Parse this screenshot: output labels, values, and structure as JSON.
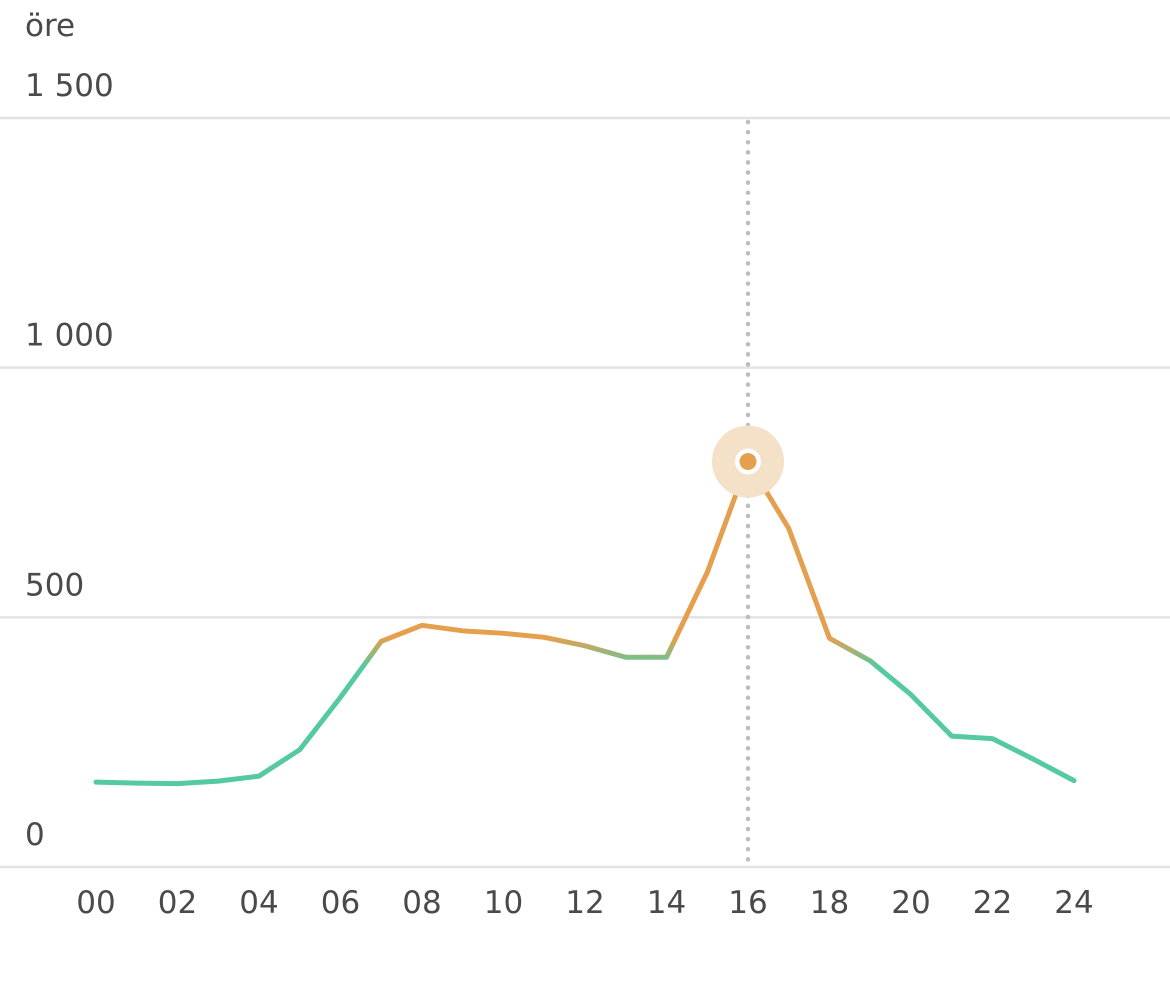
{
  "chart_data": {
    "type": "line",
    "title": "",
    "ylabel": "öre",
    "xlabel": "",
    "ylim": [
      0,
      1500
    ],
    "xlim": [
      0,
      24
    ],
    "y_ticks": [
      {
        "value": 0,
        "label": "0"
      },
      {
        "value": 500,
        "label": "500"
      },
      {
        "value": 1000,
        "label": "1 000"
      },
      {
        "value": 1500,
        "label": "1 500"
      }
    ],
    "x_ticks": [
      {
        "value": 0,
        "label": "00"
      },
      {
        "value": 2,
        "label": "02"
      },
      {
        "value": 4,
        "label": "04"
      },
      {
        "value": 6,
        "label": "06"
      },
      {
        "value": 8,
        "label": "08"
      },
      {
        "value": 10,
        "label": "10"
      },
      {
        "value": 12,
        "label": "12"
      },
      {
        "value": 14,
        "label": "14"
      },
      {
        "value": 16,
        "label": "16"
      },
      {
        "value": 18,
        "label": "18"
      },
      {
        "value": 20,
        "label": "20"
      },
      {
        "value": 22,
        "label": "22"
      },
      {
        "value": 24,
        "label": "24"
      }
    ],
    "grid": true,
    "series": [
      {
        "x": [
          0,
          1,
          2,
          3,
          4,
          5,
          6,
          7,
          8,
          9,
          10,
          11,
          12,
          13,
          14,
          15,
          16,
          17,
          18,
          19,
          20,
          21,
          22,
          23,
          24
        ],
        "values": [
          170,
          168,
          167,
          172,
          182,
          235,
          340,
          452,
          484,
          473,
          468,
          460,
          443,
          420,
          420,
          590,
          812,
          678,
          458,
          413,
          345,
          262,
          257,
          216,
          173
        ]
      }
    ],
    "highlight": {
      "x": 16,
      "value": 812
    },
    "colors": {
      "low": "#55c9a0",
      "high": "#e4a04f",
      "grid": "#e3e3e3",
      "crosshair": "#bdbdbd",
      "halo": "#f5e0c8",
      "text": "#4a4a4a"
    },
    "color_threshold": 430
  }
}
